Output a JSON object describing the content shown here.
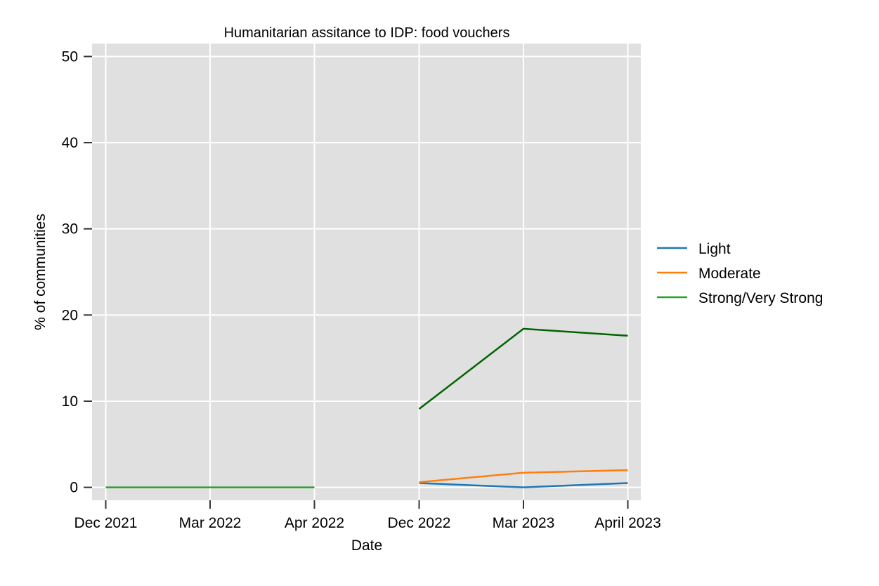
{
  "chart_data": {
    "type": "line",
    "title": "Humanitarian assitance to IDP: food vouchers",
    "xlabel": "Date",
    "ylabel": "% of communities",
    "categories": [
      "Dec 2021",
      "Mar 2022",
      "Apr 2022",
      "Dec 2022",
      "Mar 2023",
      "April 2023"
    ],
    "ylim": [
      -1.5,
      51.5
    ],
    "yticks": [
      0,
      10,
      20,
      30,
      40,
      50
    ],
    "grid": true,
    "legend_position": "right",
    "series": [
      {
        "name": "Light",
        "color": "#1f77b4",
        "values": [
          null,
          null,
          null,
          0.5,
          0.0,
          0.5
        ]
      },
      {
        "name": "Moderate",
        "color": "#ff7f0e",
        "values": [
          null,
          null,
          null,
          0.6,
          1.7,
          2.0
        ]
      },
      {
        "name": "Strong/Very Strong",
        "color": "#2ca02c",
        "values": [
          0,
          0,
          0,
          null,
          null,
          null
        ]
      },
      {
        "name": "",
        "color": "#006400",
        "values": [
          null,
          null,
          null,
          9.1,
          18.4,
          17.6
        ]
      }
    ]
  }
}
